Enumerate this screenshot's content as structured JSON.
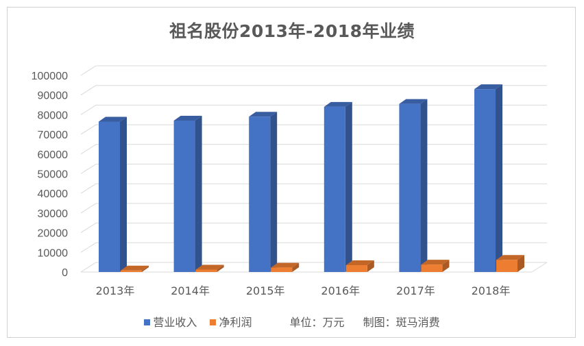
{
  "chart_data": {
    "type": "bar",
    "title": "祖名股份2013年-2018年业绩",
    "categories": [
      "2013年",
      "2014年",
      "2015年",
      "2016年",
      "2017年",
      "2018年"
    ],
    "series": [
      {
        "name": "营业收入",
        "color": "#4472c4",
        "values": [
          76500,
          77000,
          79000,
          84000,
          85500,
          93000
        ]
      },
      {
        "name": "净利润",
        "color": "#ed7d31",
        "values": [
          800,
          1200,
          2200,
          3500,
          3800,
          6200
        ]
      }
    ],
    "ylim": [
      0,
      100000
    ],
    "yticks": [
      "0",
      "10000",
      "20000",
      "30000",
      "40000",
      "50000",
      "60000",
      "70000",
      "80000",
      "90000",
      "100000"
    ],
    "grid": true,
    "legend_position": "bottom",
    "notes": {
      "unit": "单位：万元",
      "credit": "制图：斑马消费"
    }
  }
}
